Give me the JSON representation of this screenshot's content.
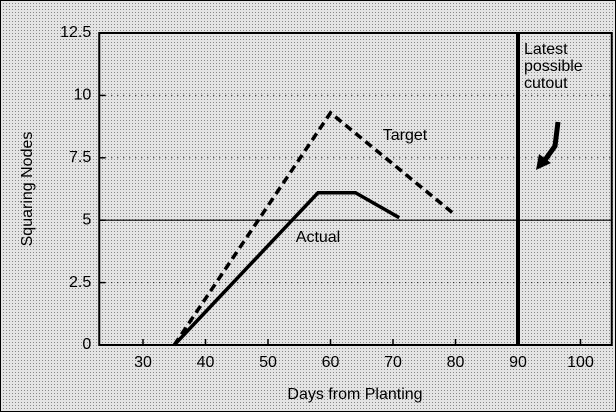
{
  "chart_data": {
    "type": "line",
    "xlabel": "Days from Planting",
    "ylabel": "Squaring Nodes",
    "xlim": [
      23,
      105
    ],
    "ylim": [
      0,
      12.5
    ],
    "xticks": [
      30,
      40,
      50,
      60,
      70,
      80,
      90,
      100
    ],
    "yticks": [
      0,
      2.5,
      5,
      7.5,
      10,
      12.5
    ],
    "grid": true,
    "hline": 5,
    "vline": 90,
    "annotation": [
      "Latest",
      "possible",
      "cutout"
    ],
    "series": [
      {
        "name": "Target",
        "color": "#000000",
        "dashed": true,
        "x": [
          35,
          60,
          80
        ],
        "values": [
          0,
          9.3,
          5.2
        ]
      },
      {
        "name": "Actual",
        "color": "#000000",
        "dashed": false,
        "x": [
          35,
          58,
          64,
          71
        ],
        "values": [
          0,
          6.1,
          6.1,
          5.1
        ]
      }
    ]
  }
}
